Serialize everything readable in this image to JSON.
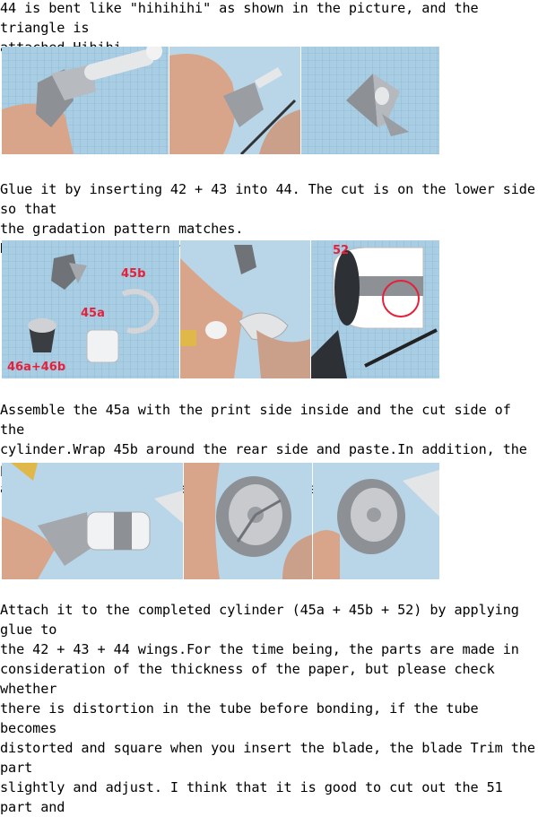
{
  "paragraphs": [
    "44 is bent like \"hihihihi\" as shown in the picture, and the triangle is\nattached.Hihihi ...",
    "Glue it by inserting 42 + 43 into 44. The cut is on the lower side so that\nthe gradation pattern matches.\nNext is the assembly of the cone.",
    "Assemble the 45a with the print side inside and the cut side of the\ncylinder.Wrap 45b around the rear side and paste.In addition, the parts\nare skipped (but the part numbers are skipped).",
    "Attach it to the completed cylinder (45a + 45b + 52) by applying glue to\nthe 42 + 43 + 44 wings.For the time being, the parts are made in\nconsideration of the thickness of the paper, but please check whether\nthere is distortion in the tube before bonding, if the tube becomes\ndistorted and square when you insert the blade, the blade Trim the part\nslightly and adjust. I think that it is good to cut out the 51 part and"
  ],
  "photo_labels": {
    "label_45b": "45b",
    "label_45a": "45a",
    "label_46": "46a+46b",
    "label_52": "52"
  },
  "colors": {
    "label_red": "#e5203a",
    "grid_paper": "#a9cde3",
    "skin": "#d9a58a"
  }
}
